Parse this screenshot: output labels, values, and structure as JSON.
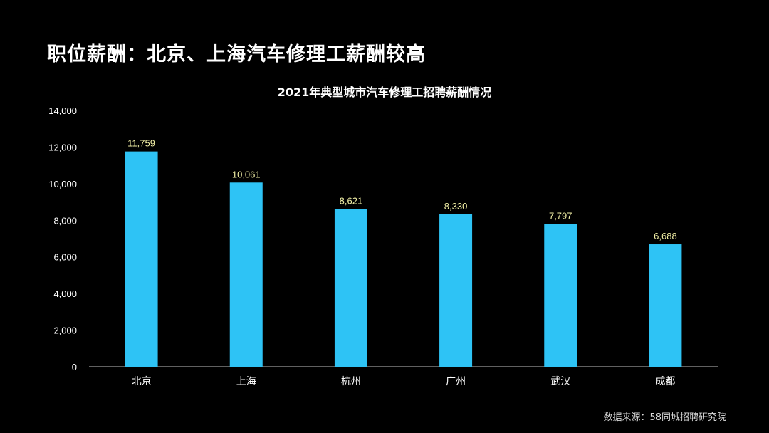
{
  "slide": {
    "title": "职位薪酬：北京、上海汽车修理工薪酬较高",
    "source": "数据来源：58同城招聘研究院"
  },
  "colors": {
    "background": "#000000",
    "bar": "#2EC3F5",
    "value_label": "#F2F0A6",
    "axis_text": "#ffffff",
    "axis_line": "#bfbfbf"
  },
  "chart_data": {
    "type": "bar",
    "title": "2021年典型城市汽车修理工招聘薪酬情况",
    "categories": [
      "北京",
      "上海",
      "杭州",
      "广州",
      "武汉",
      "成都"
    ],
    "values": [
      11759,
      10061,
      8621,
      8330,
      7797,
      6688
    ],
    "value_labels": [
      "11,759",
      "10,061",
      "8,621",
      "8,330",
      "7,797",
      "6,688"
    ],
    "yticks": [
      "0",
      "2,000",
      "4,000",
      "6,000",
      "8,000",
      "10,000",
      "12,000",
      "14,000"
    ],
    "ylim": [
      0,
      14000
    ],
    "xlabel": "",
    "ylabel": "",
    "grid": false,
    "legend": "none"
  }
}
